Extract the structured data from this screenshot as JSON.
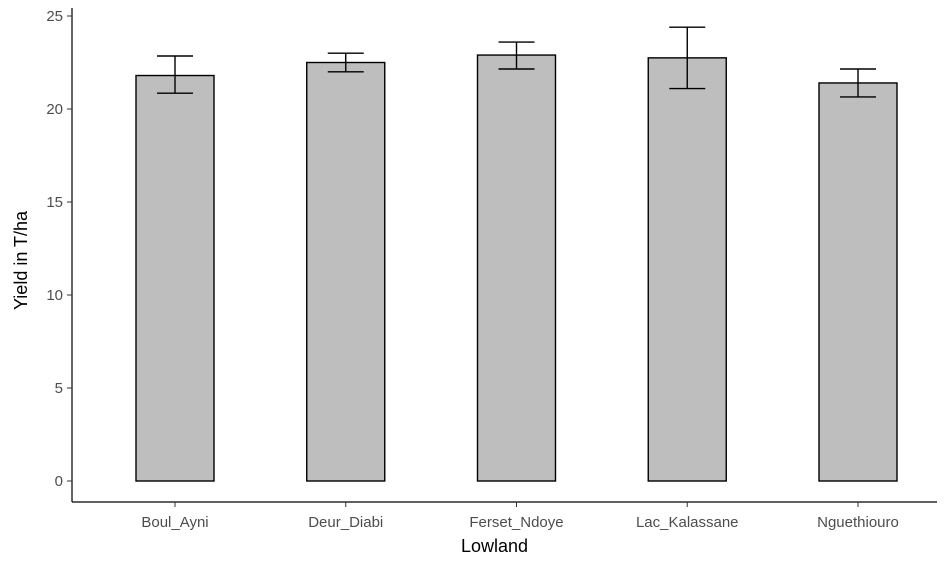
{
  "chart_data": {
    "type": "bar",
    "categories": [
      "Boul_Ayni",
      "Deur_Diabi",
      "Ferset_Ndoye",
      "Lac_Kalassane",
      "Nguethiouro"
    ],
    "values": [
      21.8,
      22.5,
      22.9,
      22.75,
      21.4
    ],
    "error_low": [
      20.85,
      22.0,
      22.15,
      21.1,
      20.65
    ],
    "error_high": [
      22.85,
      23.0,
      23.6,
      24.4,
      22.15
    ],
    "xlabel": "Lowland",
    "ylabel": "Yield in T/ha",
    "ylim": [
      0,
      25
    ],
    "yticks": [
      0,
      5,
      10,
      15,
      20,
      25
    ],
    "ytick_labels": [
      "0",
      "5",
      "10",
      "15",
      "20",
      "25"
    ],
    "bar_color": "#bebebe",
    "edge_color": "#000000",
    "grid": false
  }
}
